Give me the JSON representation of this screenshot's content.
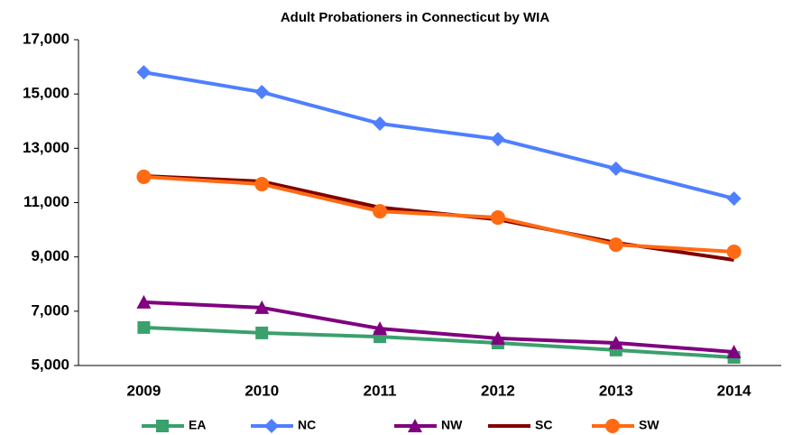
{
  "chart_data": {
    "type": "line",
    "title": "Adult Probationers in Connecticut by WIA",
    "categories": [
      "2009",
      "2010",
      "2011",
      "2012",
      "2013",
      "2014"
    ],
    "series": [
      {
        "name": "EA",
        "color": "#3aa06c",
        "marker": "square",
        "values": [
          6400,
          6200,
          6060,
          5830,
          5570,
          5300
        ]
      },
      {
        "name": "NC",
        "color": "#4f7fff",
        "marker": "diamond",
        "values": [
          15800,
          15070,
          13910,
          13340,
          12250,
          11150
        ]
      },
      {
        "name": "NW",
        "color": "#800080",
        "marker": "triangle",
        "values": [
          7330,
          7130,
          6360,
          6000,
          5830,
          5500
        ]
      },
      {
        "name": "SC",
        "color": "#800000",
        "marker": "none",
        "values": [
          11980,
          11780,
          10820,
          10380,
          9520,
          8890
        ]
      },
      {
        "name": "SW",
        "color": "#ff6a13",
        "marker": "circle",
        "values": [
          11950,
          11680,
          10680,
          10450,
          9450,
          9190
        ]
      }
    ],
    "ylim": [
      5000,
      17000
    ],
    "yticks": [
      {
        "value": 5000,
        "label": "5,000"
      },
      {
        "value": 7000,
        "label": "7,000"
      },
      {
        "value": 9000,
        "label": "9,000"
      },
      {
        "value": 11000,
        "label": "11,000"
      },
      {
        "value": 13000,
        "label": "13,000"
      },
      {
        "value": 15000,
        "label": "15,000"
      },
      {
        "value": 17000,
        "label": "17,000"
      }
    ],
    "legend": "bottom"
  }
}
